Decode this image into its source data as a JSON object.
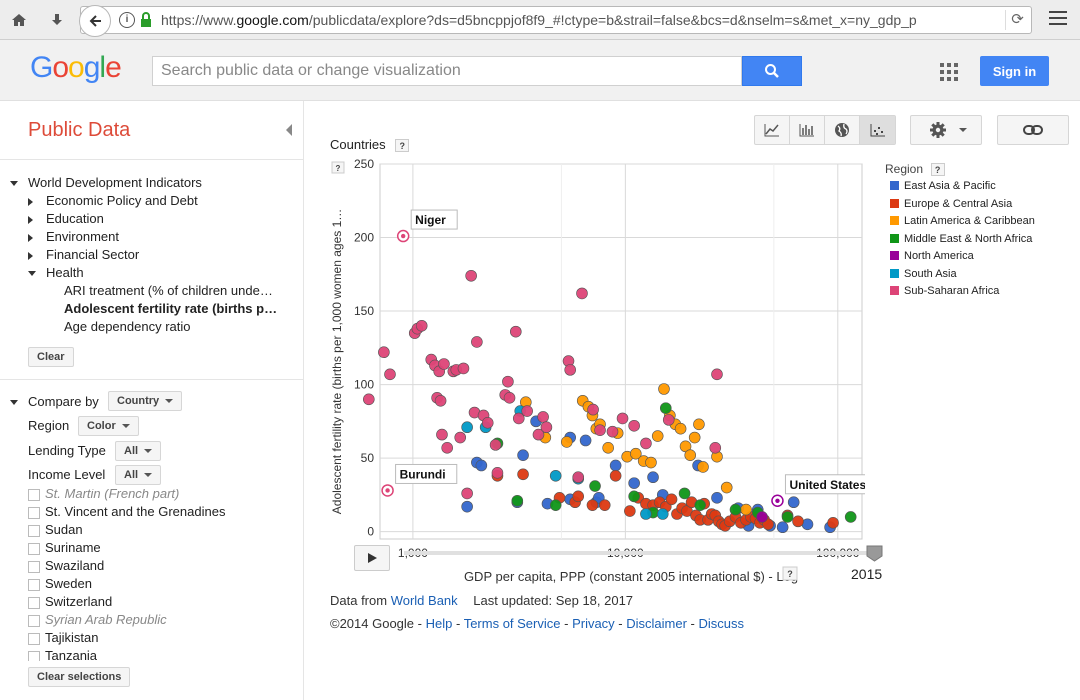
{
  "browser": {
    "url_prefix": "https://www.",
    "url_host": "google.com",
    "url_rest": "/publicdata/explore?ds=d5bncppjof8f9_#!ctype=b&strail=false&bcs=d&nselm=s&met_x=ny_gdp_p"
  },
  "header": {
    "logo": [
      "G",
      "o",
      "o",
      "g",
      "l",
      "e"
    ],
    "logo_colors": [
      "#4285f4",
      "#ea4335",
      "#fbbc05",
      "#4285f4",
      "#34a853",
      "#ea4335"
    ],
    "search_placeholder": "Search public data or change visualization",
    "signin_label": "Sign in"
  },
  "sidebar": {
    "title": "Public Data",
    "dataset": "World Development Indicators",
    "categories": [
      "Economic Policy and Debt",
      "Education",
      "Environment",
      "Financial Sector"
    ],
    "health": "Health",
    "health_items": [
      "ARI treatment (% of children unde…",
      "Adolescent fertility rate (births p…",
      "Age dependency ratio"
    ],
    "clear_label": "Clear",
    "compare_by_label": "Compare by",
    "compare_by_value": "Country",
    "region_label": "Region",
    "region_value": "Color",
    "lending_label": "Lending Type",
    "lending_value": "All",
    "income_label": "Income Level",
    "income_value": "All",
    "countries": [
      "St. Martin (French part)",
      "St. Vincent and the Grenadines",
      "Sudan",
      "Suriname",
      "Swaziland",
      "Sweden",
      "Switzerland",
      "Syrian Arab Republic",
      "Tajikistan",
      "Tanzania"
    ],
    "clear_selections_label": "Clear selections"
  },
  "chart_header": {
    "countries_label": "Countries",
    "help": "?",
    "small_help": "?"
  },
  "legend": {
    "title": "Region",
    "items": [
      {
        "name": "East Asia & Pacific",
        "color": "#3366cc"
      },
      {
        "name": "Europe & Central Asia",
        "color": "#dc3912"
      },
      {
        "name": "Latin America & Caribbean",
        "color": "#ff9900"
      },
      {
        "name": "Middle East & North Africa",
        "color": "#109618"
      },
      {
        "name": "North America",
        "color": "#990099"
      },
      {
        "name": "South Asia",
        "color": "#0099c6"
      },
      {
        "name": "Sub-Saharan Africa",
        "color": "#dd4477"
      }
    ]
  },
  "chart_data": {
    "type": "scatter",
    "x_scale": "log",
    "xlabel": "GDP per capita, PPP (constant 2005 international $) - Log",
    "ylabel": "Adolescent fertility rate (births per 1,000 women ages 1…",
    "xlim": [
      700,
      130000
    ],
    "ylim": [
      -5,
      250
    ],
    "x_ticks": [
      1000,
      10000,
      100000
    ],
    "x_tick_labels": [
      "1,000",
      "10,000",
      "100,000"
    ],
    "y_ticks": [
      0,
      50,
      100,
      150,
      200,
      250
    ],
    "grid": true,
    "year": "2015",
    "callouts": [
      {
        "label": "Niger",
        "x": 900,
        "y": 201,
        "color": "#dd4477"
      },
      {
        "label": "Burundi",
        "x": 760,
        "y": 28,
        "color": "#dd4477"
      },
      {
        "label": "United States",
        "x": 52000,
        "y": 21,
        "color": "#990099"
      }
    ],
    "series": [
      {
        "name": "East Asia & Pacific",
        "color": "#3366cc",
        "points": [
          [
            1800,
            17
          ],
          [
            2000,
            47
          ],
          [
            2100,
            45
          ],
          [
            3100,
            20
          ],
          [
            3300,
            52
          ],
          [
            3800,
            75
          ],
          [
            4300,
            19
          ],
          [
            5500,
            22
          ],
          [
            5500,
            64
          ],
          [
            6500,
            62
          ],
          [
            7300,
            20
          ],
          [
            7500,
            23
          ],
          [
            9000,
            45
          ],
          [
            11000,
            33
          ],
          [
            13500,
            37
          ],
          [
            15000,
            25
          ],
          [
            22000,
            45
          ],
          [
            27000,
            23
          ],
          [
            34000,
            16
          ],
          [
            38000,
            4
          ],
          [
            42000,
            15
          ],
          [
            48000,
            4
          ],
          [
            55000,
            3
          ],
          [
            62000,
            20
          ],
          [
            72000,
            5
          ],
          [
            92000,
            3
          ]
        ]
      },
      {
        "name": "Europe & Central Asia",
        "color": "#dc3912",
        "points": [
          [
            2500,
            38
          ],
          [
            3300,
            39
          ],
          [
            4900,
            23
          ],
          [
            5800,
            20
          ],
          [
            6000,
            24
          ],
          [
            7000,
            18
          ],
          [
            8000,
            18
          ],
          [
            9000,
            38
          ],
          [
            10500,
            14
          ],
          [
            11500,
            23
          ],
          [
            12500,
            19
          ],
          [
            13500,
            18
          ],
          [
            14500,
            20
          ],
          [
            15500,
            17
          ],
          [
            16500,
            22
          ],
          [
            17500,
            12
          ],
          [
            18500,
            16
          ],
          [
            19500,
            14
          ],
          [
            20500,
            20
          ],
          [
            21500,
            11
          ],
          [
            22500,
            8
          ],
          [
            23500,
            19
          ],
          [
            24500,
            8
          ],
          [
            25500,
            12
          ],
          [
            26500,
            11
          ],
          [
            27500,
            7
          ],
          [
            28500,
            5
          ],
          [
            29500,
            4
          ],
          [
            31000,
            7
          ],
          [
            33000,
            10
          ],
          [
            35000,
            6
          ],
          [
            37000,
            8
          ],
          [
            39000,
            10
          ],
          [
            41000,
            9
          ],
          [
            43000,
            6
          ],
          [
            45000,
            8
          ],
          [
            47000,
            5
          ],
          [
            58000,
            11
          ],
          [
            65000,
            7
          ],
          [
            95000,
            6
          ]
        ]
      },
      {
        "name": "Latin America & Caribbean",
        "color": "#ff9900",
        "points": [
          [
            3400,
            88
          ],
          [
            4200,
            64
          ],
          [
            5300,
            61
          ],
          [
            6300,
            89
          ],
          [
            6700,
            85
          ],
          [
            7000,
            79
          ],
          [
            7300,
            70
          ],
          [
            7600,
            73
          ],
          [
            8300,
            57
          ],
          [
            9200,
            67
          ],
          [
            10200,
            51
          ],
          [
            11200,
            53
          ],
          [
            12200,
            48
          ],
          [
            13200,
            47
          ],
          [
            14200,
            65
          ],
          [
            15200,
            97
          ],
          [
            16200,
            79
          ],
          [
            17200,
            73
          ],
          [
            18200,
            70
          ],
          [
            19200,
            58
          ],
          [
            20200,
            52
          ],
          [
            21200,
            64
          ],
          [
            22200,
            73
          ],
          [
            23200,
            44
          ],
          [
            27000,
            51
          ],
          [
            30000,
            30
          ],
          [
            37000,
            15
          ]
        ]
      },
      {
        "name": "Middle East & North Africa",
        "color": "#109618",
        "points": [
          [
            2500,
            60
          ],
          [
            3100,
            21
          ],
          [
            4700,
            18
          ],
          [
            7200,
            31
          ],
          [
            11000,
            24
          ],
          [
            13500,
            13
          ],
          [
            15500,
            84
          ],
          [
            19000,
            26
          ],
          [
            22500,
            18
          ],
          [
            33000,
            15
          ],
          [
            42000,
            13
          ],
          [
            58000,
            10
          ],
          [
            115000,
            10
          ]
        ]
      },
      {
        "name": "North America",
        "color": "#990099",
        "points": [
          [
            44000,
            10
          ]
        ]
      },
      {
        "name": "South Asia",
        "color": "#0099c6",
        "points": [
          [
            1800,
            71
          ],
          [
            2200,
            71
          ],
          [
            3200,
            82
          ],
          [
            4700,
            38
          ],
          [
            6000,
            36
          ],
          [
            12500,
            12
          ],
          [
            15000,
            12
          ]
        ]
      },
      {
        "name": "Sub-Saharan Africa",
        "color": "#dd4477",
        "points": [
          [
            620,
            90
          ],
          [
            730,
            122
          ],
          [
            780,
            107
          ],
          [
            1020,
            135
          ],
          [
            1050,
            138
          ],
          [
            1100,
            140
          ],
          [
            1220,
            117
          ],
          [
            1270,
            113
          ],
          [
            1300,
            91
          ],
          [
            1330,
            109
          ],
          [
            1350,
            89
          ],
          [
            1370,
            66
          ],
          [
            1400,
            114
          ],
          [
            1450,
            57
          ],
          [
            1550,
            109
          ],
          [
            1600,
            110
          ],
          [
            1670,
            64
          ],
          [
            1730,
            111
          ],
          [
            1800,
            26
          ],
          [
            1880,
            174
          ],
          [
            1950,
            81
          ],
          [
            2000,
            129
          ],
          [
            2150,
            79
          ],
          [
            2250,
            74
          ],
          [
            2450,
            59
          ],
          [
            2500,
            40
          ],
          [
            2720,
            93
          ],
          [
            2800,
            102
          ],
          [
            2850,
            91
          ],
          [
            3050,
            136
          ],
          [
            3150,
            77
          ],
          [
            3450,
            82
          ],
          [
            3900,
            66
          ],
          [
            4100,
            78
          ],
          [
            4250,
            71
          ],
          [
            5400,
            116
          ],
          [
            5500,
            110
          ],
          [
            6000,
            37
          ],
          [
            6250,
            162
          ],
          [
            7050,
            83
          ],
          [
            7600,
            69
          ],
          [
            8700,
            68
          ],
          [
            9700,
            77
          ],
          [
            11000,
            72
          ],
          [
            12500,
            60
          ],
          [
            16000,
            76
          ],
          [
            27000,
            107
          ],
          [
            26500,
            57
          ]
        ]
      }
    ]
  },
  "slider": {
    "year": "2015"
  },
  "footer": {
    "data_from": "Data from",
    "source": "World Bank",
    "updated": "Last updated: Sep 18, 2017",
    "copyright": "©2014 Google -",
    "links": [
      "Help",
      "Terms of Service",
      "Privacy",
      "Disclaimer",
      "Discuss"
    ]
  }
}
